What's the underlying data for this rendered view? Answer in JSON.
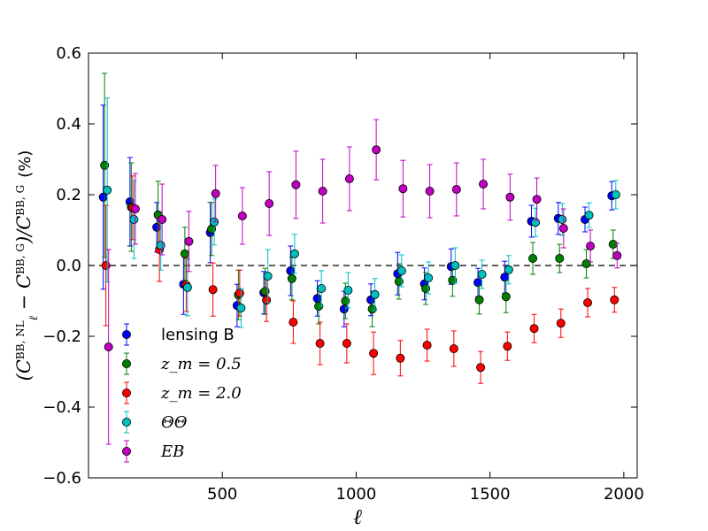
{
  "chart_data": {
    "type": "scatter",
    "title": "",
    "xlabel": "ℓ",
    "ylabel": "(C_ℓ^{BB,NL} − C_ℓ^{BB,G})/C_ℓ^{BB,G} (%)",
    "ylabel_parts": {
      "open": "(C",
      "sup1": "BB, NL",
      "sub": "ℓ",
      "minus": " − C",
      "sup2": "BB, G",
      "close": ")/C",
      "sup3": "BB, G",
      "units": "(%)"
    },
    "xlim": [
      0,
      2050
    ],
    "ylim": [
      -0.6,
      0.6
    ],
    "xticks": [
      500,
      1000,
      1500,
      2000
    ],
    "xtick_labels": [
      "500",
      "1000",
      "1500",
      "2000"
    ],
    "yticks": [
      -0.6,
      -0.4,
      -0.2,
      0.0,
      0.2,
      0.4,
      0.6
    ],
    "ytick_labels": [
      "−0.6",
      "−0.4",
      "−0.2",
      "0.0",
      "0.2",
      "0.4",
      "0.6"
    ],
    "reference_line": {
      "y": 0.0,
      "style": "dashed"
    },
    "legend_position": "lower-left",
    "series": [
      {
        "name": "lensing B",
        "color": "#0000ff",
        "x": [
          55,
          155,
          255,
          355,
          455,
          555,
          655,
          755,
          855,
          955,
          1055,
          1155,
          1255,
          1355,
          1455,
          1555,
          1655,
          1755,
          1855,
          1955
        ],
        "y": [
          0.193,
          0.18,
          0.108,
          -0.053,
          0.093,
          -0.113,
          -0.077,
          -0.015,
          -0.093,
          -0.123,
          -0.097,
          -0.023,
          -0.052,
          -0.003,
          -0.048,
          -0.033,
          0.125,
          0.133,
          0.13,
          0.197
        ],
        "err": [
          0.26,
          0.125,
          0.07,
          0.085,
          0.085,
          0.06,
          0.06,
          0.07,
          0.05,
          0.05,
          0.045,
          0.06,
          0.045,
          0.05,
          0.04,
          0.045,
          0.045,
          0.045,
          0.035,
          0.04
        ]
      },
      {
        "name": "z_m = 0.5",
        "color": "#008000",
        "x": [
          60,
          160,
          260,
          360,
          460,
          560,
          660,
          760,
          860,
          960,
          1060,
          1160,
          1260,
          1360,
          1460,
          1560,
          1660,
          1760,
          1860,
          1960
        ],
        "y": [
          0.283,
          0.165,
          0.143,
          0.033,
          0.103,
          -0.083,
          -0.073,
          -0.037,
          -0.115,
          -0.1,
          -0.123,
          -0.045,
          -0.065,
          -0.042,
          -0.097,
          -0.088,
          0.02,
          0.02,
          0.005,
          0.06
        ],
        "err": [
          0.26,
          0.125,
          0.095,
          0.075,
          0.075,
          0.07,
          0.065,
          0.06,
          0.05,
          0.05,
          0.05,
          0.05,
          0.045,
          0.045,
          0.04,
          0.045,
          0.045,
          0.04,
          0.04,
          0.04
        ]
      },
      {
        "name": "z_m = 2.0",
        "color": "#ff0000",
        "x": [
          65,
          165,
          265,
          365,
          465,
          565,
          665,
          765,
          865,
          965,
          1065,
          1165,
          1265,
          1365,
          1465,
          1565,
          1665,
          1765,
          1865,
          1965
        ],
        "y": [
          0.0,
          0.163,
          0.045,
          -0.055,
          -0.068,
          -0.078,
          -0.098,
          -0.16,
          -0.22,
          -0.22,
          -0.248,
          -0.262,
          -0.225,
          -0.235,
          -0.288,
          -0.228,
          -0.178,
          -0.163,
          -0.105,
          -0.097
        ],
        "err": [
          0.17,
          0.09,
          0.09,
          0.075,
          0.075,
          0.065,
          0.06,
          0.06,
          0.06,
          0.055,
          0.06,
          0.05,
          0.045,
          0.05,
          0.045,
          0.04,
          0.04,
          0.04,
          0.04,
          0.035
        ]
      },
      {
        "name": "ΘΘ",
        "color": "#00bfbf",
        "x": [
          70,
          170,
          270,
          370,
          470,
          570,
          670,
          770,
          870,
          970,
          1070,
          1170,
          1270,
          1370,
          1470,
          1570,
          1670,
          1770,
          1870,
          1970
        ],
        "y": [
          0.213,
          0.13,
          0.057,
          -0.062,
          0.123,
          -0.12,
          -0.03,
          0.033,
          -0.065,
          -0.07,
          -0.082,
          -0.015,
          -0.035,
          0.0,
          -0.025,
          -0.012,
          0.122,
          0.13,
          0.142,
          0.2
        ],
        "err": [
          0.26,
          0.11,
          0.07,
          0.08,
          0.065,
          0.055,
          0.075,
          0.055,
          0.05,
          0.05,
          0.045,
          0.045,
          0.045,
          0.05,
          0.04,
          0.04,
          0.04,
          0.045,
          0.035,
          0.04
        ]
      },
      {
        "name": "EB",
        "color": "#bf00bf",
        "x": [
          75,
          175,
          275,
          375,
          475,
          575,
          675,
          775,
          875,
          975,
          1075,
          1175,
          1275,
          1375,
          1475,
          1575,
          1675,
          1775,
          1875,
          1975
        ],
        "y": [
          -0.23,
          0.16,
          0.13,
          0.068,
          0.203,
          0.14,
          0.175,
          0.228,
          0.21,
          0.245,
          0.327,
          0.217,
          0.21,
          0.215,
          0.23,
          0.193,
          0.187,
          0.105,
          0.055,
          0.028
        ],
        "err": [
          0.275,
          0.1,
          0.1,
          0.085,
          0.08,
          0.08,
          0.09,
          0.095,
          0.09,
          0.09,
          0.085,
          0.08,
          0.075,
          0.075,
          0.07,
          0.065,
          0.06,
          0.055,
          0.045,
          0.035
        ]
      }
    ]
  }
}
